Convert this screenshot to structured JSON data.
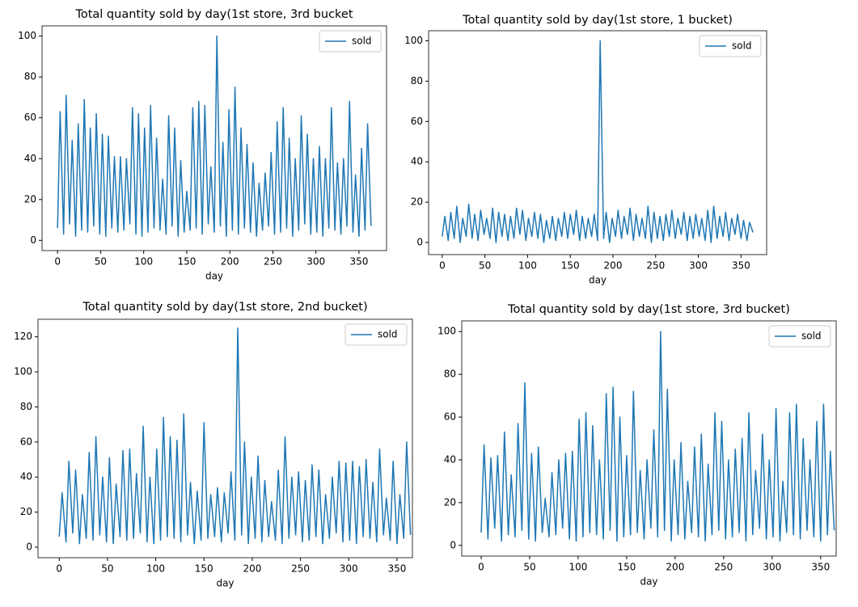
{
  "chart_data": [
    {
      "type": "line",
      "title": "Total quantity sold by day(1st store, 3rd bucket",
      "xlabel": "day",
      "legend": "upper right",
      "x": [
        0,
        3,
        7,
        10,
        14,
        17,
        21,
        24,
        28,
        31,
        35,
        38,
        42,
        45,
        49,
        52,
        56,
        59,
        63,
        66,
        70,
        73,
        77,
        80,
        84,
        87,
        91,
        94,
        98,
        101,
        105,
        108,
        112,
        115,
        119,
        122,
        126,
        129,
        133,
        136,
        140,
        143,
        147,
        150,
        154,
        157,
        161,
        164,
        168,
        171,
        175,
        178,
        182,
        185,
        189,
        192,
        196,
        199,
        203,
        206,
        210,
        213,
        217,
        220,
        224,
        227,
        231,
        234,
        238,
        241,
        245,
        248,
        252,
        255,
        259,
        262,
        266,
        269,
        273,
        276,
        280,
        283,
        287,
        290,
        294,
        297,
        301,
        304,
        308,
        311,
        315,
        318,
        322,
        325,
        329,
        332,
        336,
        339,
        343,
        346,
        350,
        353,
        357,
        360,
        364
      ],
      "series": [
        {
          "name": "sold",
          "color": "#1f77b4",
          "values": [
            6,
            63,
            3,
            71,
            8,
            49,
            2,
            57,
            5,
            69,
            4,
            55,
            7,
            62,
            3,
            52,
            2,
            51,
            6,
            41,
            4,
            41,
            5,
            40,
            8,
            65,
            3,
            62,
            2,
            55,
            4,
            66,
            6,
            50,
            5,
            30,
            3,
            61,
            7,
            55,
            2,
            39,
            4,
            24,
            5,
            65,
            6,
            68,
            3,
            66,
            8,
            36,
            4,
            100,
            7,
            48,
            2,
            64,
            5,
            75,
            3,
            55,
            6,
            47,
            4,
            38,
            2,
            28,
            5,
            33,
            7,
            43,
            3,
            58,
            4,
            65,
            6,
            50,
            2,
            40,
            5,
            61,
            8,
            52,
            3,
            40,
            4,
            46,
            2,
            40,
            6,
            65,
            5,
            38,
            3,
            40,
            7,
            68,
            4,
            32,
            2,
            45,
            5,
            57,
            7
          ]
        }
      ],
      "xlim": [
        -18,
        382
      ],
      "ylim": [
        -5,
        105
      ],
      "xticks": [
        0,
        50,
        100,
        150,
        200,
        250,
        300,
        350
      ],
      "yticks": [
        0,
        20,
        40,
        60,
        80,
        100
      ]
    },
    {
      "type": "line",
      "title": "Total quantity sold by day(1st store, 1 bucket)",
      "xlabel": "day",
      "legend": "upper right",
      "x": [
        0,
        3,
        7,
        10,
        14,
        17,
        21,
        24,
        28,
        31,
        35,
        38,
        42,
        45,
        49,
        52,
        56,
        59,
        63,
        66,
        70,
        73,
        77,
        80,
        84,
        87,
        91,
        94,
        98,
        101,
        105,
        108,
        112,
        115,
        119,
        122,
        126,
        129,
        133,
        136,
        140,
        143,
        147,
        150,
        154,
        157,
        161,
        164,
        168,
        171,
        175,
        178,
        182,
        185,
        189,
        192,
        196,
        199,
        203,
        206,
        210,
        213,
        217,
        220,
        224,
        227,
        231,
        234,
        238,
        241,
        245,
        248,
        252,
        255,
        259,
        262,
        266,
        269,
        273,
        276,
        280,
        283,
        287,
        290,
        294,
        297,
        301,
        304,
        308,
        311,
        315,
        318,
        322,
        325,
        329,
        332,
        336,
        339,
        343,
        346,
        350,
        353,
        357,
        360,
        364
      ],
      "series": [
        {
          "name": "sold",
          "color": "#1f77b4",
          "values": [
            3,
            13,
            1,
            15,
            2,
            18,
            0,
            12,
            3,
            19,
            2,
            14,
            1,
            16,
            4,
            12,
            2,
            17,
            0,
            15,
            3,
            14,
            1,
            13,
            2,
            17,
            4,
            16,
            1,
            12,
            3,
            15,
            2,
            14,
            0,
            11,
            2,
            13,
            1,
            12,
            3,
            15,
            2,
            14,
            4,
            16,
            1,
            13,
            2,
            12,
            3,
            14,
            1,
            100,
            2,
            15,
            0,
            12,
            3,
            16,
            2,
            13,
            4,
            17,
            1,
            14,
            3,
            12,
            2,
            18,
            0,
            15,
            2,
            13,
            1,
            14,
            3,
            16,
            2,
            12,
            4,
            15,
            1,
            13,
            2,
            14,
            3,
            12,
            1,
            16,
            0,
            18,
            2,
            13,
            3,
            15,
            1,
            12,
            4,
            14,
            2,
            11,
            1,
            10,
            5
          ]
        }
      ],
      "xlim": [
        -16,
        380
      ],
      "ylim": [
        -6,
        105
      ],
      "xticks": [
        0,
        50,
        100,
        150,
        200,
        250,
        300,
        350
      ],
      "yticks": [
        0,
        20,
        40,
        60,
        80,
        100
      ]
    },
    {
      "type": "line",
      "title": "Total quantity sold by day(1st store, 2nd bucket)",
      "xlabel": "day",
      "legend": "upper right",
      "x": [
        0,
        3,
        7,
        10,
        14,
        17,
        21,
        24,
        28,
        31,
        35,
        38,
        42,
        45,
        49,
        52,
        56,
        59,
        63,
        66,
        70,
        73,
        77,
        80,
        84,
        87,
        91,
        94,
        98,
        101,
        105,
        108,
        112,
        115,
        119,
        122,
        126,
        129,
        133,
        136,
        140,
        143,
        147,
        150,
        154,
        157,
        161,
        164,
        168,
        171,
        175,
        178,
        182,
        185,
        189,
        192,
        196,
        199,
        203,
        206,
        210,
        213,
        217,
        220,
        224,
        227,
        231,
        234,
        238,
        241,
        245,
        248,
        252,
        255,
        259,
        262,
        266,
        269,
        273,
        276,
        280,
        283,
        287,
        290,
        294,
        297,
        301,
        304,
        308,
        311,
        315,
        318,
        322,
        325,
        329,
        332,
        336,
        339,
        343,
        346,
        350,
        353,
        357,
        360,
        364
      ],
      "series": [
        {
          "name": "sold",
          "color": "#1f77b4",
          "values": [
            6,
            31,
            3,
            49,
            8,
            44,
            2,
            30,
            5,
            54,
            4,
            63,
            7,
            40,
            3,
            51,
            2,
            36,
            6,
            55,
            4,
            56,
            5,
            42,
            8,
            69,
            3,
            40,
            2,
            56,
            4,
            74,
            6,
            63,
            5,
            61,
            3,
            76,
            7,
            37,
            2,
            32,
            4,
            71,
            5,
            30,
            6,
            34,
            3,
            31,
            8,
            43,
            4,
            125,
            7,
            60,
            2,
            40,
            5,
            52,
            3,
            38,
            6,
            26,
            4,
            44,
            2,
            63,
            5,
            40,
            7,
            43,
            3,
            38,
            4,
            47,
            6,
            44,
            2,
            30,
            5,
            40,
            8,
            49,
            3,
            48,
            4,
            49,
            2,
            46,
            6,
            50,
            5,
            37,
            3,
            56,
            7,
            28,
            4,
            49,
            2,
            30,
            5,
            60,
            7
          ]
        }
      ],
      "xlim": [
        -22,
        366
      ],
      "ylim": [
        -6,
        130
      ],
      "xticks": [
        0,
        50,
        100,
        150,
        200,
        250,
        300,
        350
      ],
      "yticks": [
        0,
        20,
        40,
        60,
        80,
        100,
        120
      ]
    },
    {
      "type": "line",
      "title": "Total quantity sold by day(1st store, 3rd bucket)",
      "xlabel": "day",
      "legend": "upper right",
      "x": [
        0,
        3,
        7,
        10,
        14,
        17,
        21,
        24,
        28,
        31,
        35,
        38,
        42,
        45,
        49,
        52,
        56,
        59,
        63,
        66,
        70,
        73,
        77,
        80,
        84,
        87,
        91,
        94,
        98,
        101,
        105,
        108,
        112,
        115,
        119,
        122,
        126,
        129,
        133,
        136,
        140,
        143,
        147,
        150,
        154,
        157,
        161,
        164,
        168,
        171,
        175,
        178,
        182,
        185,
        189,
        192,
        196,
        199,
        203,
        206,
        210,
        213,
        217,
        220,
        224,
        227,
        231,
        234,
        238,
        241,
        245,
        248,
        252,
        255,
        259,
        262,
        266,
        269,
        273,
        276,
        280,
        283,
        287,
        290,
        294,
        297,
        301,
        304,
        308,
        311,
        315,
        318,
        322,
        325,
        329,
        332,
        336,
        339,
        343,
        346,
        350,
        353,
        357,
        360,
        364
      ],
      "series": [
        {
          "name": "sold",
          "color": "#1f77b4",
          "values": [
            6,
            47,
            3,
            41,
            8,
            42,
            2,
            53,
            5,
            33,
            4,
            57,
            7,
            76,
            3,
            43,
            2,
            46,
            6,
            22,
            4,
            34,
            5,
            40,
            8,
            43,
            3,
            44,
            2,
            59,
            4,
            62,
            6,
            56,
            5,
            40,
            3,
            71,
            7,
            74,
            2,
            60,
            4,
            42,
            5,
            72,
            6,
            35,
            3,
            40,
            8,
            54,
            4,
            100,
            7,
            73,
            2,
            40,
            5,
            48,
            3,
            30,
            6,
            46,
            4,
            52,
            2,
            38,
            5,
            62,
            7,
            58,
            3,
            40,
            4,
            45,
            6,
            50,
            2,
            62,
            5,
            35,
            8,
            52,
            3,
            40,
            4,
            64,
            2,
            30,
            6,
            62,
            5,
            66,
            3,
            50,
            7,
            40,
            4,
            58,
            2,
            66,
            5,
            44,
            7
          ]
        }
      ],
      "xlim": [
        -20,
        366
      ],
      "ylim": [
        -5,
        105
      ],
      "xticks": [
        0,
        50,
        100,
        150,
        200,
        250,
        300,
        350
      ],
      "yticks": [
        0,
        20,
        40,
        60,
        80,
        100
      ]
    }
  ]
}
